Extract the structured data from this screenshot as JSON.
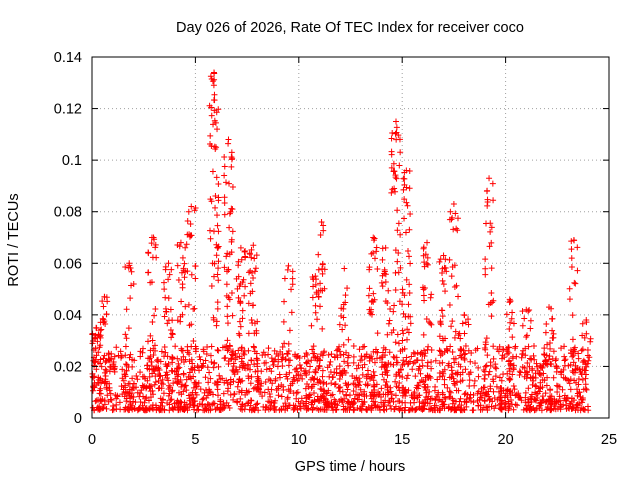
{
  "chart_data": {
    "type": "scatter",
    "title": "Day 026 of 2026, Rate Of TEC Index for receiver coco",
    "xlabel": "GPS time / hours",
    "ylabel": "ROTI / TECUs",
    "xlim": [
      0,
      25
    ],
    "ylim": [
      0,
      0.14
    ],
    "x_ticks": [
      0,
      5,
      10,
      15,
      20,
      25
    ],
    "y_ticks": [
      0,
      0.02,
      0.04,
      0.06,
      0.08,
      0.1,
      0.12,
      0.14
    ],
    "x_tick_labels": [
      "0",
      "5",
      "10",
      "15",
      "20",
      "25"
    ],
    "y_tick_labels": [
      "0",
      "0.02",
      "0.04",
      "0.06",
      "0.08",
      "0.1",
      "0.12",
      "0.14"
    ],
    "grid": true,
    "marker": "+",
    "series_color": "#ff0000",
    "baseline": {
      "x_start": 0,
      "x_end": 24,
      "y_min": 0.003,
      "y_max": 0.028,
      "count": 1800
    },
    "clusters": [
      {
        "x": 0.2,
        "ymax": 0.035,
        "n": 25
      },
      {
        "x": 0.6,
        "ymax": 0.047,
        "n": 20
      },
      {
        "x": 1.8,
        "ymax": 0.06,
        "n": 15
      },
      {
        "x": 2.9,
        "ymax": 0.07,
        "n": 25
      },
      {
        "x": 3.7,
        "ymax": 0.06,
        "n": 25
      },
      {
        "x": 4.3,
        "ymax": 0.068,
        "n": 30
      },
      {
        "x": 4.8,
        "ymax": 0.082,
        "n": 30
      },
      {
        "x": 5.9,
        "ymax": 0.134,
        "n": 60
      },
      {
        "x": 6.6,
        "ymax": 0.108,
        "n": 45
      },
      {
        "x": 7.2,
        "ymax": 0.066,
        "n": 30
      },
      {
        "x": 7.8,
        "ymax": 0.067,
        "n": 35
      },
      {
        "x": 9.5,
        "ymax": 0.059,
        "n": 15
      },
      {
        "x": 10.8,
        "ymax": 0.055,
        "n": 20
      },
      {
        "x": 11.1,
        "ymax": 0.076,
        "n": 20
      },
      {
        "x": 12.2,
        "ymax": 0.058,
        "n": 20
      },
      {
        "x": 13.6,
        "ymax": 0.07,
        "n": 25
      },
      {
        "x": 14.2,
        "ymax": 0.066,
        "n": 25
      },
      {
        "x": 14.7,
        "ymax": 0.115,
        "n": 45
      },
      {
        "x": 15.2,
        "ymax": 0.096,
        "n": 40
      },
      {
        "x": 16.2,
        "ymax": 0.068,
        "n": 25
      },
      {
        "x": 17.0,
        "ymax": 0.063,
        "n": 25
      },
      {
        "x": 17.5,
        "ymax": 0.083,
        "n": 25
      },
      {
        "x": 18.0,
        "ymax": 0.04,
        "n": 15
      },
      {
        "x": 19.2,
        "ymax": 0.093,
        "n": 30
      },
      {
        "x": 20.2,
        "ymax": 0.046,
        "n": 20
      },
      {
        "x": 21.0,
        "ymax": 0.042,
        "n": 15
      },
      {
        "x": 22.1,
        "ymax": 0.043,
        "n": 15
      },
      {
        "x": 23.3,
        "ymax": 0.069,
        "n": 15
      },
      {
        "x": 23.9,
        "ymax": 0.038,
        "n": 15
      }
    ]
  }
}
